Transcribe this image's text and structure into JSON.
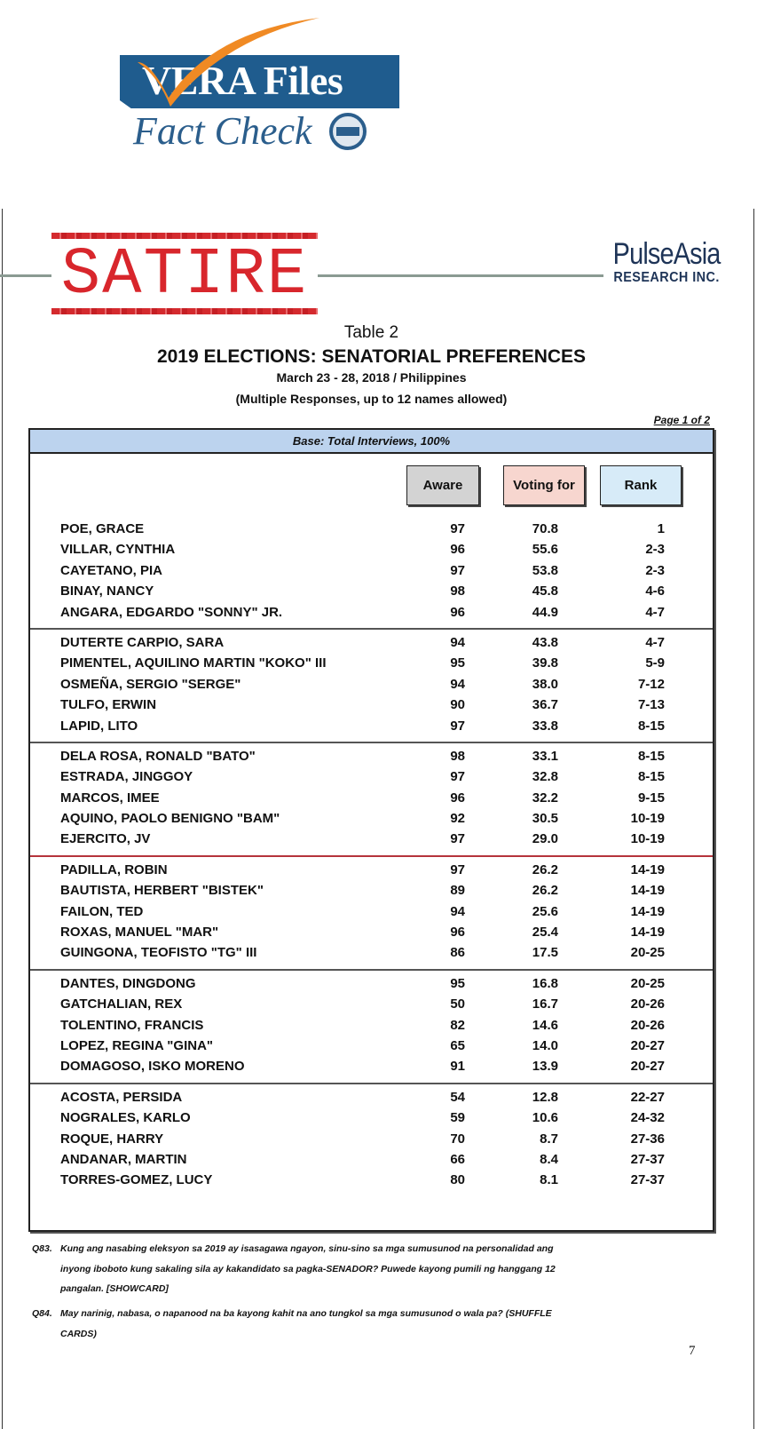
{
  "logo": {
    "brand": "VERA Files",
    "subtitle": "Fact Check",
    "seal_text": "VERA Files"
  },
  "stamp": {
    "label": "SATIRE",
    "color": "#d8262c"
  },
  "pollster": {
    "line1": "PulseAsia",
    "line2": "RESEARCH INC."
  },
  "title": {
    "table": "Table 2",
    "heading": "2019 ELECTIONS: SENATORIAL PREFERENCES",
    "dates": "March 23 - 28, 2018 / Philippines",
    "note": "(Multiple Responses, up to 12 names allowed)",
    "page": "Page 1 of 2"
  },
  "table": {
    "base": "Base: Total Interviews, 100%",
    "columns": [
      "Aware",
      "Voting for",
      "Rank"
    ],
    "groups": [
      [
        [
          "POE, GRACE",
          "97",
          "70.8",
          "1"
        ],
        [
          "VILLAR, CYNTHIA",
          "96",
          "55.6",
          "2-3"
        ],
        [
          "CAYETANO, PIA",
          "97",
          "53.8",
          "2-3"
        ],
        [
          "BINAY, NANCY",
          "98",
          "45.8",
          "4-6"
        ],
        [
          "ANGARA, EDGARDO \"SONNY\" JR.",
          "96",
          "44.9",
          "4-7"
        ]
      ],
      [
        [
          "DUTERTE CARPIO, SARA",
          "94",
          "43.8",
          "4-7"
        ],
        [
          "PIMENTEL, AQUILINO MARTIN \"KOKO\" III",
          "95",
          "39.8",
          "5-9"
        ],
        [
          "OSMEÑA, SERGIO \"SERGE\"",
          "94",
          "38.0",
          "7-12"
        ],
        [
          "TULFO, ERWIN",
          "90",
          "36.7",
          "7-13"
        ],
        [
          "LAPID, LITO",
          "97",
          "33.8",
          "8-15"
        ]
      ],
      [
        [
          "DELA ROSA, RONALD \"BATO\"",
          "98",
          "33.1",
          "8-15"
        ],
        [
          "ESTRADA, JINGGOY",
          "97",
          "32.8",
          "8-15"
        ],
        [
          "MARCOS, IMEE",
          "96",
          "32.2",
          "9-15"
        ],
        [
          "AQUINO, PAOLO BENIGNO \"BAM\"",
          "92",
          "30.5",
          "10-19"
        ],
        [
          "EJERCITO, JV",
          "97",
          "29.0",
          "10-19"
        ]
      ],
      [
        [
          "PADILLA, ROBIN",
          "97",
          "26.2",
          "14-19"
        ],
        [
          "BAUTISTA, HERBERT \"BISTEK\"",
          "89",
          "26.2",
          "14-19"
        ],
        [
          "FAILON, TED",
          "94",
          "25.6",
          "14-19"
        ],
        [
          "ROXAS, MANUEL \"MAR\"",
          "96",
          "25.4",
          "14-19"
        ],
        [
          "GUINGONA, TEOFISTO \"TG\" III",
          "86",
          "17.5",
          "20-25"
        ]
      ],
      [
        [
          "DANTES, DINGDONG",
          "95",
          "16.8",
          "20-25"
        ],
        [
          "GATCHALIAN, REX",
          "50",
          "16.7",
          "20-26"
        ],
        [
          "TOLENTINO, FRANCIS",
          "82",
          "14.6",
          "20-26"
        ],
        [
          "LOPEZ, REGINA \"GINA\"",
          "65",
          "14.0",
          "20-27"
        ],
        [
          "DOMAGOSO, ISKO MORENO",
          "91",
          "13.9",
          "20-27"
        ]
      ],
      [
        [
          "ACOSTA, PERSIDA",
          "54",
          "12.8",
          "22-27"
        ],
        [
          "NOGRALES, KARLO",
          "59",
          "10.6",
          "24-32"
        ],
        [
          "ROQUE, HARRY",
          "70",
          "8.7",
          "27-36"
        ],
        [
          "ANDANAR, MARTIN",
          "66",
          "8.4",
          "27-37"
        ],
        [
          "TORRES-GOMEZ, LUCY",
          "80",
          "8.1",
          "27-37"
        ]
      ]
    ]
  },
  "footnotes": [
    {
      "q": "Q83.",
      "text": "Kung ang nasabing eleksyon sa 2019 ay isasagawa ngayon, sinu-sino sa mga sumusunod na personalidad ang inyong iboboto kung sakaling sila ay kakandidato sa pagka-SENADOR? Puwede kayong pumili ng hanggang 12 pangalan.  [SHOWCARD]"
    },
    {
      "q": "Q84.",
      "text": "May narinig, nabasa, o napanood na ba kayong kahit na ano tungkol sa mga sumusunod o wala pa? (SHUFFLE CARDS)"
    }
  ],
  "page_number": "7"
}
